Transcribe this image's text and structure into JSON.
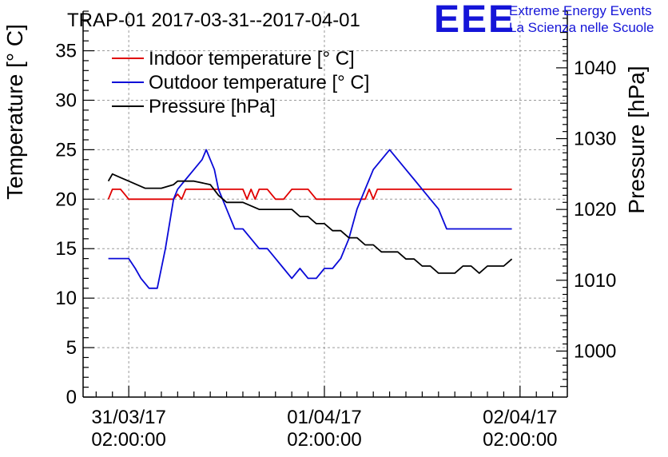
{
  "logo": {
    "mark": "EEE",
    "line1": "Extreme Energy Events",
    "line2": "La Scienza nelle Scuole",
    "color": "#1515d8"
  },
  "chart_data": {
    "type": "line",
    "title": "TRAP-01 2017-03-31--2017-04-01",
    "ylabel": "Temperature [° C]",
    "y2label": "Pressure [hPa]",
    "ylim": [
      0,
      39
    ],
    "y2lim": [
      993.5,
      1048
    ],
    "x_hours_range": [
      -5.6,
      53.8
    ],
    "grid": true,
    "legend_position": "top-left",
    "yticks": [
      0,
      5,
      10,
      15,
      20,
      25,
      30,
      35
    ],
    "y2ticks": [
      1000,
      1010,
      1020,
      1030,
      1040
    ],
    "xticks": [
      {
        "h": 0,
        "line1": "31/03/17",
        "line2": "02:00:00"
      },
      {
        "h": 24,
        "line1": "01/04/17",
        "line2": "02:00:00"
      },
      {
        "h": 48,
        "line1": "02/04/17",
        "line2": "02:00:00"
      }
    ],
    "series": [
      {
        "name": "Indoor temperature [° C]",
        "color": "#e00000",
        "axis": "left",
        "x": [
          -2.5,
          -2,
          -1,
          -0.5,
          0,
          2,
          4,
          5.5,
          6,
          6.5,
          7,
          8,
          9,
          10,
          11,
          12,
          13,
          14,
          14.5,
          15,
          15.5,
          16,
          16.5,
          17,
          18,
          19,
          20,
          20.5,
          21,
          22,
          23,
          24,
          25,
          26,
          27,
          28,
          29,
          29.5,
          30,
          30.5,
          31,
          33,
          35,
          37,
          40,
          42,
          44,
          47
        ],
        "values": [
          20,
          21,
          21,
          20.5,
          20,
          20,
          20,
          20,
          20.5,
          20,
          21,
          21,
          21,
          21,
          21,
          21,
          21,
          21,
          20,
          21,
          20,
          21,
          21,
          21,
          20,
          20,
          21,
          21,
          21,
          21,
          20,
          20,
          20,
          20,
          20,
          20,
          20,
          21,
          20,
          21,
          21,
          21,
          21,
          21,
          21,
          21,
          21,
          21
        ]
      },
      {
        "name": "Outdoor temperature [° C]",
        "color": "#0a0ad8",
        "axis": "left",
        "x": [
          -2.5,
          -1,
          0,
          0.8,
          1.5,
          2.5,
          3.5,
          4.5,
          5.5,
          6,
          7,
          8,
          9,
          9.5,
          10,
          10.5,
          11,
          12,
          12.5,
          13,
          13.5,
          14,
          15,
          16,
          17,
          18,
          19,
          20,
          21,
          22,
          23,
          24,
          25,
          26,
          27,
          28,
          29,
          30,
          31,
          32,
          33,
          34,
          35,
          36,
          37,
          38,
          38.5,
          39,
          40,
          41,
          42,
          43,
          44,
          45,
          46,
          47
        ],
        "values": [
          14,
          14,
          14,
          13,
          12,
          11,
          11,
          15,
          20,
          21,
          22,
          23,
          24,
          25,
          24,
          23,
          21,
          19,
          18,
          17,
          17,
          17,
          16,
          15,
          15,
          14,
          13,
          12,
          13,
          12,
          12,
          13,
          13,
          14,
          16,
          19,
          21,
          23,
          24,
          25,
          24,
          23,
          22,
          21,
          20,
          19,
          18,
          17,
          17,
          17,
          17,
          17,
          17,
          17,
          17,
          17
        ]
      },
      {
        "name": "Pressure [hPa]",
        "color": "#000000",
        "axis": "right",
        "x": [
          -2.5,
          -2,
          -1,
          0,
          2,
          4,
          5.5,
          6,
          8,
          10,
          11,
          12,
          14,
          16,
          18,
          20,
          21,
          22,
          23,
          24,
          25,
          26,
          27,
          28,
          29,
          30,
          31,
          32,
          33,
          34,
          35,
          36,
          37,
          38,
          39,
          40,
          41,
          42,
          43,
          44,
          45,
          46,
          47
        ],
        "values": [
          1024,
          1025,
          1024.5,
          1024,
          1023,
          1023,
          1023.5,
          1024,
          1024,
          1023.5,
          1022,
          1021,
          1021,
          1020,
          1020,
          1020,
          1019,
          1019,
          1018,
          1018,
          1017,
          1017,
          1016,
          1016,
          1015,
          1015,
          1014,
          1014,
          1014,
          1013,
          1013,
          1012,
          1012,
          1011,
          1011,
          1011,
          1012,
          1012,
          1011,
          1012,
          1012,
          1012,
          1013
        ]
      }
    ]
  }
}
